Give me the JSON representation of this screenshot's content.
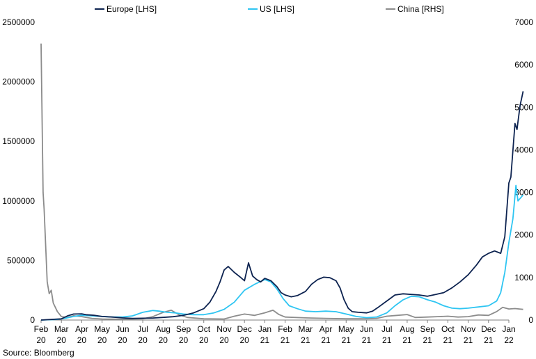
{
  "source": "Source: Bloomberg",
  "chart_data": {
    "type": "line",
    "title": "",
    "xlabel": "",
    "ylabel": "",
    "ylim_left": [
      0,
      2500000
    ],
    "ylim_right": [
      0,
      7000
    ],
    "yticks_left": [
      "0",
      "500000",
      "1000000",
      "1500000",
      "2000000",
      "2500000"
    ],
    "yticks_right": [
      "0",
      "1000",
      "2000",
      "3000",
      "4000",
      "5000",
      "6000",
      "7000"
    ],
    "x_months": [
      {
        "m": "Feb",
        "y": "20"
      },
      {
        "m": "Mar",
        "y": "20"
      },
      {
        "m": "Apr",
        "y": "20"
      },
      {
        "m": "May",
        "y": "20"
      },
      {
        "m": "Jun",
        "y": "20"
      },
      {
        "m": "Jul",
        "y": "20"
      },
      {
        "m": "Aug",
        "y": "20"
      },
      {
        "m": "Sep",
        "y": "20"
      },
      {
        "m": "Oct",
        "y": "20"
      },
      {
        "m": "Nov",
        "y": "20"
      },
      {
        "m": "Dec",
        "y": "20"
      },
      {
        "m": "Jan",
        "y": "21"
      },
      {
        "m": "Feb",
        "y": "21"
      },
      {
        "m": "Mar",
        "y": "21"
      },
      {
        "m": "Apr",
        "y": "21"
      },
      {
        "m": "May",
        "y": "21"
      },
      {
        "m": "Jun",
        "y": "21"
      },
      {
        "m": "Jul",
        "y": "21"
      },
      {
        "m": "Aug",
        "y": "21"
      },
      {
        "m": "Sep",
        "y": "21"
      },
      {
        "m": "Oct",
        "y": "21"
      },
      {
        "m": "Nov",
        "y": "21"
      },
      {
        "m": "Dec",
        "y": "21"
      },
      {
        "m": "Jan",
        "y": "22"
      }
    ],
    "legend_position": "top",
    "grid": false,
    "series": [
      {
        "name": "Europe [LHS]",
        "axis": "left",
        "color": "#0d2350",
        "points": [
          [
            0.0,
            0
          ],
          [
            1.0,
            10000
          ],
          [
            1.3,
            35000
          ],
          [
            1.6,
            50000
          ],
          [
            2.0,
            52000
          ],
          [
            2.2,
            45000
          ],
          [
            2.6,
            40000
          ],
          [
            3.0,
            30000
          ],
          [
            3.5,
            25000
          ],
          [
            4.0,
            18000
          ],
          [
            4.5,
            14000
          ],
          [
            5.0,
            15000
          ],
          [
            5.5,
            17000
          ],
          [
            6.0,
            22000
          ],
          [
            6.5,
            28000
          ],
          [
            7.0,
            40000
          ],
          [
            7.5,
            60000
          ],
          [
            8.0,
            95000
          ],
          [
            8.3,
            150000
          ],
          [
            8.6,
            240000
          ],
          [
            8.8,
            320000
          ],
          [
            9.0,
            420000
          ],
          [
            9.2,
            450000
          ],
          [
            9.5,
            400000
          ],
          [
            9.8,
            360000
          ],
          [
            10.0,
            330000
          ],
          [
            10.2,
            480000
          ],
          [
            10.4,
            370000
          ],
          [
            10.6,
            340000
          ],
          [
            10.8,
            320000
          ],
          [
            11.0,
            350000
          ],
          [
            11.3,
            330000
          ],
          [
            11.6,
            280000
          ],
          [
            11.8,
            230000
          ],
          [
            12.0,
            210000
          ],
          [
            12.3,
            195000
          ],
          [
            12.6,
            205000
          ],
          [
            13.0,
            240000
          ],
          [
            13.3,
            300000
          ],
          [
            13.6,
            340000
          ],
          [
            13.9,
            360000
          ],
          [
            14.2,
            355000
          ],
          [
            14.5,
            330000
          ],
          [
            14.7,
            270000
          ],
          [
            14.9,
            170000
          ],
          [
            15.1,
            100000
          ],
          [
            15.3,
            70000
          ],
          [
            15.6,
            65000
          ],
          [
            16.0,
            60000
          ],
          [
            16.3,
            75000
          ],
          [
            16.6,
            110000
          ],
          [
            17.0,
            160000
          ],
          [
            17.4,
            210000
          ],
          [
            17.8,
            220000
          ],
          [
            18.2,
            215000
          ],
          [
            18.6,
            210000
          ],
          [
            19.0,
            200000
          ],
          [
            19.4,
            215000
          ],
          [
            19.8,
            230000
          ],
          [
            20.2,
            270000
          ],
          [
            20.6,
            320000
          ],
          [
            21.0,
            380000
          ],
          [
            21.4,
            460000
          ],
          [
            21.7,
            530000
          ],
          [
            22.0,
            560000
          ],
          [
            22.3,
            580000
          ],
          [
            22.6,
            560000
          ],
          [
            22.8,
            700000
          ],
          [
            23.0,
            1150000
          ],
          [
            23.1,
            1200000
          ],
          [
            23.3,
            1650000
          ],
          [
            23.4,
            1600000
          ],
          [
            23.55,
            1800000
          ],
          [
            23.7,
            1920000
          ]
        ]
      },
      {
        "name": "US [LHS]",
        "axis": "left",
        "color": "#2ec5f2",
        "points": [
          [
            0.0,
            0
          ],
          [
            0.8,
            5000
          ],
          [
            1.2,
            15000
          ],
          [
            1.6,
            30000
          ],
          [
            2.0,
            40000
          ],
          [
            2.5,
            35000
          ],
          [
            3.0,
            30000
          ],
          [
            3.5,
            25000
          ],
          [
            4.0,
            25000
          ],
          [
            4.5,
            35000
          ],
          [
            5.0,
            65000
          ],
          [
            5.5,
            80000
          ],
          [
            5.8,
            75000
          ],
          [
            6.2,
            65000
          ],
          [
            6.6,
            60000
          ],
          [
            7.0,
            50000
          ],
          [
            7.5,
            45000
          ],
          [
            8.0,
            45000
          ],
          [
            8.5,
            60000
          ],
          [
            9.0,
            90000
          ],
          [
            9.5,
            150000
          ],
          [
            10.0,
            250000
          ],
          [
            10.5,
            300000
          ],
          [
            11.0,
            340000
          ],
          [
            11.3,
            320000
          ],
          [
            11.6,
            260000
          ],
          [
            11.9,
            180000
          ],
          [
            12.2,
            120000
          ],
          [
            12.6,
            95000
          ],
          [
            13.0,
            75000
          ],
          [
            13.5,
            70000
          ],
          [
            14.0,
            75000
          ],
          [
            14.5,
            70000
          ],
          [
            15.0,
            50000
          ],
          [
            15.5,
            30000
          ],
          [
            16.0,
            20000
          ],
          [
            16.5,
            25000
          ],
          [
            17.0,
            60000
          ],
          [
            17.4,
            120000
          ],
          [
            17.8,
            170000
          ],
          [
            18.2,
            200000
          ],
          [
            18.6,
            195000
          ],
          [
            19.0,
            170000
          ],
          [
            19.4,
            150000
          ],
          [
            19.8,
            120000
          ],
          [
            20.2,
            100000
          ],
          [
            20.6,
            95000
          ],
          [
            21.0,
            100000
          ],
          [
            21.5,
            110000
          ],
          [
            22.0,
            120000
          ],
          [
            22.4,
            160000
          ],
          [
            22.6,
            230000
          ],
          [
            22.8,
            400000
          ],
          [
            23.0,
            650000
          ],
          [
            23.2,
            850000
          ],
          [
            23.35,
            1130000
          ],
          [
            23.45,
            1000000
          ],
          [
            23.7,
            1050000
          ]
        ]
      },
      {
        "name": "China [RHS]",
        "axis": "right",
        "color": "#8c8c8c",
        "points": [
          [
            0.0,
            6500
          ],
          [
            0.1,
            3000
          ],
          [
            0.15,
            2600
          ],
          [
            0.3,
            900
          ],
          [
            0.4,
            620
          ],
          [
            0.5,
            700
          ],
          [
            0.6,
            400
          ],
          [
            0.8,
            200
          ],
          [
            1.0,
            80
          ],
          [
            1.3,
            60
          ],
          [
            1.6,
            100
          ],
          [
            2.0,
            80
          ],
          [
            2.5,
            40
          ],
          [
            3.0,
            25
          ],
          [
            4.0,
            20
          ],
          [
            5.0,
            30
          ],
          [
            5.5,
            80
          ],
          [
            6.0,
            180
          ],
          [
            6.4,
            230
          ],
          [
            6.8,
            120
          ],
          [
            7.2,
            60
          ],
          [
            8.0,
            30
          ],
          [
            9.0,
            25
          ],
          [
            9.5,
            90
          ],
          [
            10.0,
            140
          ],
          [
            10.5,
            110
          ],
          [
            11.0,
            170
          ],
          [
            11.4,
            230
          ],
          [
            11.7,
            130
          ],
          [
            12.0,
            70
          ],
          [
            13.0,
            50
          ],
          [
            14.0,
            40
          ],
          [
            15.0,
            30
          ],
          [
            16.0,
            30
          ],
          [
            16.5,
            40
          ],
          [
            17.0,
            90
          ],
          [
            17.5,
            110
          ],
          [
            18.0,
            130
          ],
          [
            18.4,
            60
          ],
          [
            19.0,
            70
          ],
          [
            19.5,
            80
          ],
          [
            20.0,
            90
          ],
          [
            20.5,
            70
          ],
          [
            21.0,
            80
          ],
          [
            21.5,
            120
          ],
          [
            22.0,
            110
          ],
          [
            22.4,
            200
          ],
          [
            22.7,
            300
          ],
          [
            23.0,
            260
          ],
          [
            23.3,
            270
          ],
          [
            23.7,
            250
          ]
        ]
      }
    ]
  }
}
